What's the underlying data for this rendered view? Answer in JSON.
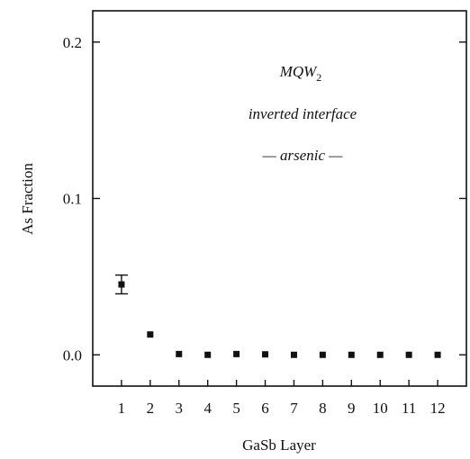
{
  "chart_data": {
    "type": "scatter",
    "title": "",
    "xlabel": "GaSb Layer",
    "ylabel": "As Fraction",
    "xlim": [
      0,
      13
    ],
    "ylim": [
      -0.02,
      0.22
    ],
    "x_ticks": [
      1,
      2,
      3,
      4,
      5,
      6,
      7,
      8,
      9,
      10,
      11,
      12
    ],
    "y_ticks": [
      0.0,
      0.1,
      0.2
    ],
    "y_tick_labels": [
      "0.0",
      "0.1",
      "0.2"
    ],
    "grid": false,
    "annotations": {
      "line1_main": "MQW",
      "line1_sub": "2",
      "line2": "inverted interface",
      "line3": "— arsenic —"
    },
    "series": [
      {
        "x": [
          1,
          2,
          3,
          4,
          5,
          6,
          7,
          8,
          9,
          10,
          11,
          12
        ],
        "values": [
          0.045,
          0.013,
          0.0005,
          0.0,
          0.0005,
          0.0003,
          0.0,
          0.0,
          0.0,
          0.0,
          0.0,
          0.0
        ],
        "error": [
          0.006,
          0,
          0,
          0,
          0,
          0,
          0,
          0,
          0,
          0,
          0,
          0
        ]
      }
    ]
  }
}
